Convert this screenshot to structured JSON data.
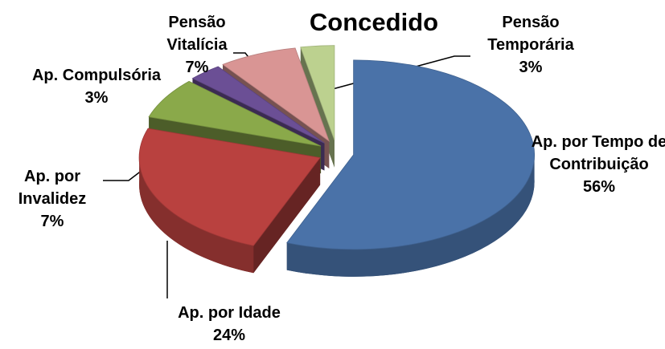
{
  "chart_data": {
    "type": "pie",
    "title": "Concedido",
    "categories": [
      "Ap. por Tempo de Contribuição",
      "Ap. por Idade",
      "Ap. por Invalidez",
      "Ap. Compulsória",
      "Pensão Vitalícia",
      "Pensão Temporária"
    ],
    "values": [
      56,
      24,
      7,
      3,
      7,
      3
    ],
    "value_labels": [
      "56%",
      "24%",
      "7%",
      "3%",
      "7%",
      "3%"
    ],
    "colors": [
      "#4a72a8",
      "#b9413f",
      "#8aa94a",
      "#6b4f95",
      "#d99594",
      "#bcd18f"
    ]
  }
}
